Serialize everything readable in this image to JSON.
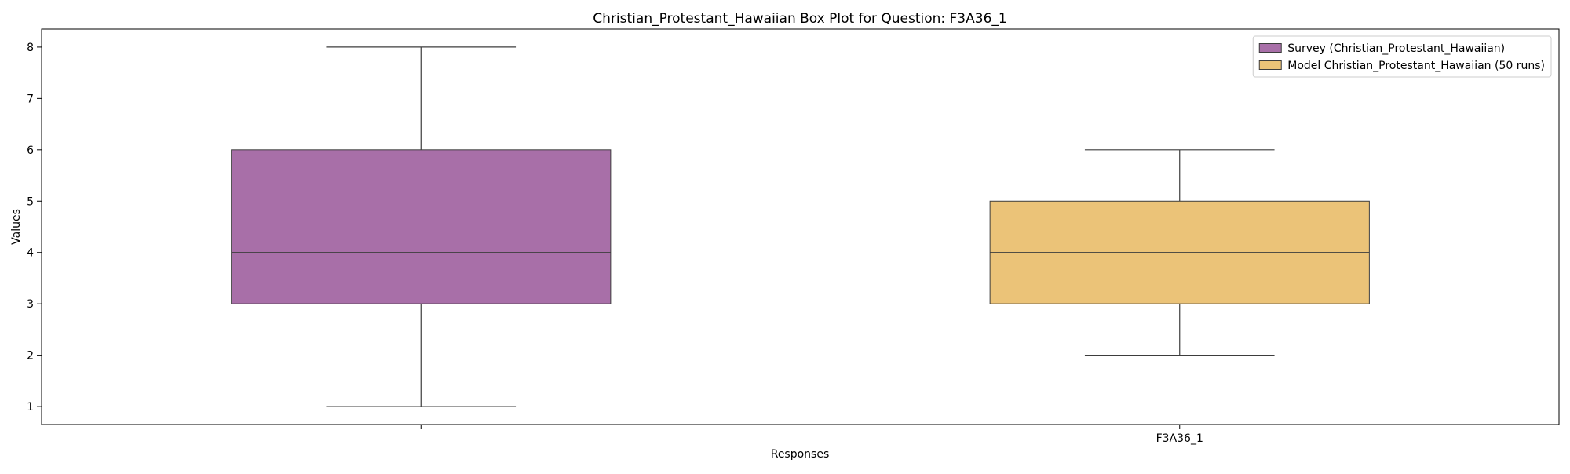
{
  "chart_data": {
    "type": "box",
    "title": "Christian_Protestant_Hawaiian Box Plot for Question: F3A36_1",
    "xlabel": "Responses",
    "ylabel": "Values",
    "ylim": [
      0.65,
      8.35
    ],
    "yticks": [
      1,
      2,
      3,
      4,
      5,
      6,
      7,
      8
    ],
    "grid": false,
    "legend_position": "top-right",
    "categories": [
      "",
      "F3A36_1"
    ],
    "series": [
      {
        "name": "Survey (Christian_Protestant_Hawaiian)",
        "color": "#a86fa8",
        "whisker_low": 1,
        "q1": 3,
        "median": 4,
        "q3": 6,
        "whisker_high": 8
      },
      {
        "name": "Model Christian_Protestant_Hawaiian (50 runs)",
        "color": "#ebc378",
        "whisker_low": 2,
        "q1": 3,
        "median": 4,
        "q3": 5,
        "whisker_high": 6
      }
    ]
  }
}
